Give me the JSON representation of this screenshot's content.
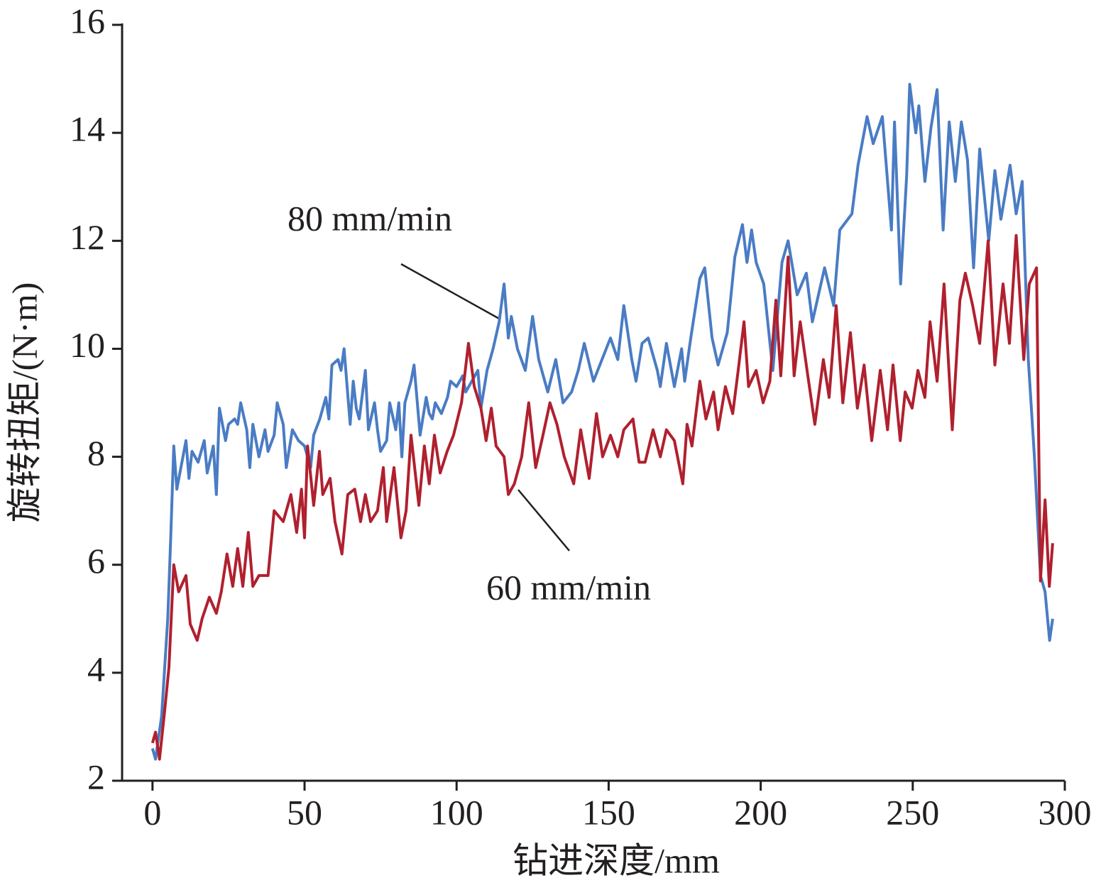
{
  "chart_data": {
    "type": "line",
    "xlabel": "钻进深度/mm",
    "ylabel": "旋转扭矩/(N·m)",
    "annotations": [
      "80 mm/min",
      "60 mm/min"
    ],
    "xlim": [
      -10,
      300
    ],
    "xticks": [
      0,
      50,
      100,
      150,
      200,
      250,
      300
    ],
    "ylim": [
      2,
      16
    ],
    "yticks": [
      2,
      4,
      6,
      8,
      10,
      12,
      14,
      16
    ],
    "series": [
      {
        "name": "80 mm/min",
        "color": "#4a7cc4",
        "x": [
          0,
          1,
          3,
          5,
          6,
          7,
          8,
          10,
          11,
          12,
          13,
          15,
          17,
          18,
          20,
          21,
          22,
          24,
          25,
          27,
          28,
          29,
          31,
          32,
          33,
          35,
          37,
          38,
          40,
          41,
          43,
          44,
          46,
          48,
          50,
          52,
          53,
          55,
          57,
          58,
          59,
          61,
          62,
          63,
          65,
          66,
          67,
          68,
          70,
          71,
          73,
          74,
          75,
          77,
          78,
          80,
          81,
          82,
          83,
          85,
          86,
          88,
          90,
          91,
          92,
          93,
          95,
          97,
          98,
          100,
          102,
          103,
          106,
          107,
          108,
          110,
          112,
          114,
          115.6,
          117,
          118,
          120,
          122.6,
          125,
          127,
          130,
          132.6,
          135,
          137.8,
          140,
          142,
          145,
          150.6,
          153,
          155,
          157.6,
          159,
          161,
          163,
          166,
          167,
          169,
          171.6,
          174,
          175,
          177,
          180,
          181.6,
          184,
          186,
          189,
          191.5,
          194,
          195.5,
          197,
          198.5,
          201,
          204,
          207,
          209,
          212,
          215,
          217,
          221,
          224,
          226,
          230,
          232,
          235,
          237,
          240,
          243,
          244,
          246,
          248,
          249,
          251,
          252,
          254,
          256,
          258,
          260,
          262,
          264,
          266,
          268,
          270,
          272,
          275,
          277,
          279,
          282,
          284,
          286,
          288,
          290,
          292,
          293.5,
          295,
          296
        ],
        "values": [
          2.6,
          2.4,
          3.2,
          5.0,
          6.5,
          8.2,
          7.4,
          8.0,
          8.3,
          7.6,
          8.1,
          7.9,
          8.3,
          7.7,
          8.2,
          7.3,
          8.9,
          8.3,
          8.6,
          8.7,
          8.6,
          9.0,
          8.5,
          7.8,
          8.6,
          8.0,
          8.5,
          8.1,
          8.4,
          9.0,
          8.6,
          7.8,
          8.5,
          8.3,
          8.2,
          7.8,
          8.4,
          8.7,
          9.1,
          8.7,
          9.7,
          9.8,
          9.6,
          10.0,
          8.6,
          9.4,
          8.9,
          8.7,
          9.6,
          8.5,
          9.0,
          8.5,
          8.1,
          8.3,
          9.0,
          8.5,
          9.0,
          8.0,
          9.0,
          9.4,
          9.7,
          8.4,
          9.1,
          8.8,
          8.7,
          9.0,
          8.8,
          9.1,
          9.4,
          9.3,
          9.5,
          9.2,
          9.5,
          9.6,
          8.9,
          9.6,
          10.0,
          10.5,
          11.2,
          10.2,
          10.6,
          10.0,
          9.6,
          10.6,
          9.8,
          9.2,
          9.8,
          9.0,
          9.2,
          9.6,
          10.1,
          9.4,
          10.2,
          9.8,
          10.8,
          9.8,
          9.4,
          10.1,
          10.2,
          9.6,
          9.3,
          10.1,
          9.3,
          10.0,
          9.4,
          10.2,
          11.3,
          11.5,
          10.2,
          9.7,
          10.3,
          11.7,
          12.3,
          11.6,
          12.2,
          11.6,
          11.2,
          9.6,
          11.6,
          12.0,
          11.0,
          11.4,
          10.5,
          11.5,
          10.8,
          12.2,
          12.5,
          13.4,
          14.3,
          13.8,
          14.3,
          12.2,
          14.2,
          11.2,
          13.2,
          14.9,
          14.0,
          14.5,
          13.1,
          14.1,
          14.8,
          12.2,
          14.2,
          13.1,
          14.2,
          13.5,
          11.5,
          13.7,
          12.0,
          13.3,
          12.4,
          13.4,
          12.5,
          13.1,
          9.8,
          8.0,
          5.8,
          5.5,
          4.6,
          5.0
        ]
      },
      {
        "name": "60 mm/min",
        "color": "#b0202e",
        "x": [
          0,
          1,
          2.3,
          4,
          5.4,
          7,
          8.6,
          11,
          12.4,
          14.7,
          16.3,
          18.7,
          21,
          22.6,
          24.5,
          26.4,
          28,
          29.7,
          31.5,
          33,
          35,
          38,
          40,
          43,
          45.5,
          47.4,
          49,
          50,
          51,
          53,
          54.9,
          56,
          58.4,
          60,
          62.3,
          64.2,
          66.5,
          68.4,
          70,
          71.7,
          74,
          75.9,
          77,
          79.4,
          81.7,
          83.4,
          85,
          87.6,
          89.4,
          91,
          92.7,
          94.6,
          96.9,
          99,
          101.6,
          103.9,
          105.8,
          108,
          109.7,
          111.4,
          113,
          115.6,
          117,
          119,
          121.4,
          123.7,
          126,
          128.4,
          130.7,
          133,
          135.4,
          138.5,
          140.8,
          143.6,
          146,
          148,
          150.6,
          153,
          155,
          158,
          160,
          162,
          164.6,
          167,
          169,
          171.6,
          174.4,
          175.8,
          177.4,
          180,
          182,
          184.5,
          186,
          188.4,
          190.8,
          192.6,
          194.5,
          196,
          198.5,
          200.8,
          203,
          205,
          206.6,
          209,
          211,
          213,
          215.5,
          217.8,
          220.6,
          222.5,
          224.8,
          227,
          229.5,
          231.8,
          234,
          236.5,
          239.3,
          241.7,
          243.5,
          245.9,
          247.5,
          249.8,
          251.7,
          254,
          255.7,
          258,
          260.3,
          263,
          265.5,
          267.3,
          269.7,
          272,
          274.8,
          277,
          279.7,
          281.8,
          284,
          286.5,
          288.3,
          290.7,
          292,
          293.5,
          294.9,
          296
        ],
        "values": [
          2.7,
          2.9,
          2.4,
          3.3,
          4.1,
          6.0,
          5.5,
          5.8,
          4.9,
          4.6,
          5.0,
          5.4,
          5.1,
          5.5,
          6.2,
          5.6,
          6.3,
          5.6,
          6.6,
          5.6,
          5.8,
          5.8,
          7.0,
          6.8,
          7.3,
          6.6,
          7.4,
          6.5,
          8.2,
          7.1,
          8.1,
          7.3,
          7.6,
          6.8,
          6.2,
          7.3,
          7.4,
          6.8,
          7.3,
          6.8,
          7.0,
          7.8,
          6.8,
          7.8,
          6.5,
          7.0,
          8.4,
          7.1,
          8.2,
          7.5,
          8.4,
          7.7,
          8.1,
          8.4,
          9.0,
          10.1,
          9.3,
          8.9,
          8.3,
          8.9,
          8.2,
          8.0,
          7.3,
          7.5,
          8.0,
          9.0,
          7.8,
          8.4,
          9.0,
          8.6,
          8.0,
          7.5,
          8.5,
          7.6,
          8.8,
          8.0,
          8.4,
          8.0,
          8.5,
          8.7,
          7.9,
          7.9,
          8.5,
          8.0,
          8.5,
          8.3,
          7.5,
          8.6,
          8.2,
          9.4,
          8.7,
          9.2,
          8.5,
          9.3,
          8.8,
          9.6,
          10.5,
          9.3,
          9.6,
          9.0,
          9.4,
          10.9,
          9.5,
          11.7,
          9.5,
          10.5,
          9.5,
          8.6,
          9.8,
          9.1,
          10.8,
          9.0,
          10.3,
          8.9,
          9.7,
          8.3,
          9.6,
          8.5,
          9.7,
          8.3,
          9.2,
          8.9,
          9.6,
          9.1,
          10.5,
          9.4,
          11.2,
          8.5,
          10.9,
          11.4,
          10.8,
          10.1,
          12.0,
          9.7,
          11.2,
          10.1,
          12.1,
          9.8,
          11.2,
          11.5,
          5.7,
          7.2,
          5.6,
          6.4
        ]
      }
    ]
  }
}
